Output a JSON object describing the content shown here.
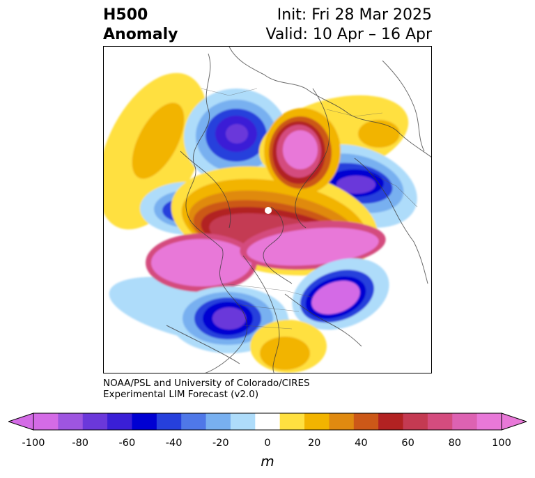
{
  "header": {
    "title_line1": "H500",
    "title_line2": "Anomaly",
    "init": "Init: Fri 28 Mar 2025",
    "valid": "Valid: 10 Apr – 16 Apr"
  },
  "credits": {
    "line1": "NOAA/PSL and University of Colorado/CIRES",
    "line2": "Experimental LIM Forecast (v2.0)"
  },
  "colorbar": {
    "unit": "m",
    "ticks": [
      "-100",
      "-80",
      "-60",
      "-40",
      "-20",
      "0",
      "20",
      "40",
      "60",
      "80",
      "100"
    ],
    "colors": [
      "#d46be6",
      "#9e55e0",
      "#6b38da",
      "#3a1fd6",
      "#0000d2",
      "#2640dc",
      "#4f78e8",
      "#78b0f0",
      "#aedcfa",
      "#ffffff",
      "#ffe040",
      "#f2b400",
      "#e08a10",
      "#cc5818",
      "#b22222",
      "#c43a52",
      "#d44c7e",
      "#dd62b2",
      "#e878d8"
    ],
    "under_color": "#d46be6",
    "over_color": "#e878d8"
  }
}
